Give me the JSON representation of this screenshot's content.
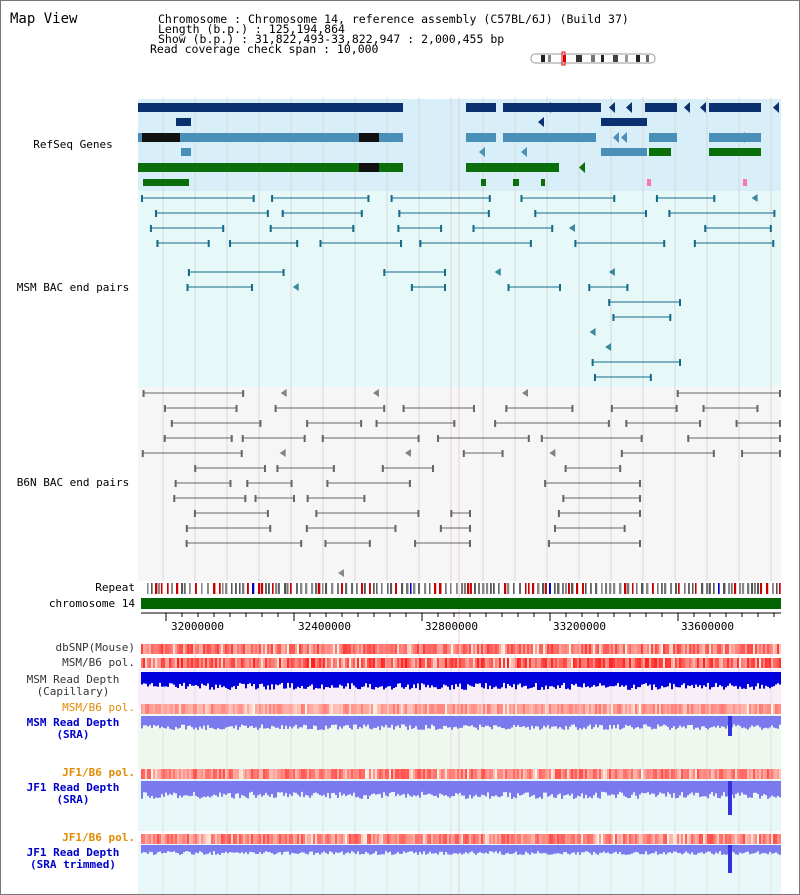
{
  "title": "Map View",
  "header": {
    "lines": [
      "Chromosome     : Chromosome 14, reference assembly (C57BL/6J) (Build 37)",
      "Length (b.p.) : 125,194,864",
      "  Show (b.p.) : 31,822,493-33,822,947 : 2,000,455 bp",
      "Read coverage check span : 10,000"
    ]
  },
  "tracks": {
    "refseq": {
      "label": "RefSeq Genes",
      "color": "#0000cc"
    },
    "msm_bac": {
      "label": "MSM BAC end pairs",
      "color": "#006b8f"
    },
    "b6n_bac": {
      "label": "B6N BAC end pairs",
      "color": "#444444"
    },
    "repeat": {
      "label": "Repeat"
    },
    "chromosome": {
      "label": "chromosome 14"
    },
    "dbsnp": {
      "label": "dbSNP(Mouse)"
    },
    "msm_b6_pol": {
      "label": "MSM/B6 pol."
    },
    "msm_depth_cap": {
      "label1": "MSM Read Depth",
      "label2": "(Capillary)"
    },
    "msm_b6_pol_orange": {
      "label": "MSM/B6 pol.",
      "color": "#e08c00"
    },
    "msm_depth_sra": {
      "label1": "MSM Read Depth",
      "label2": "(SRA)",
      "color": "#0000cc"
    },
    "jf1_b6_pol": {
      "label": "JF1/B6 pol.",
      "color": "#e08c00"
    },
    "jf1_depth_sra": {
      "label1": "JF1 Read Depth",
      "label2": "(SRA)",
      "color": "#0000cc"
    },
    "jf1_b6_pol2": {
      "label": "JF1/B6 pol.",
      "color": "#e08c00"
    },
    "jf1_depth_trim": {
      "label1": "JF1 Read Depth",
      "label2": "(SRA trimmed)",
      "color": "#0000cc"
    }
  },
  "axis": {
    "ticks": [
      "32000000",
      "32400000",
      "32800000",
      "33200000",
      "33600000"
    ]
  },
  "colors": {
    "gene_dark": "#0a3070",
    "gene_mid": "#4a8fb8",
    "gene_green": "#0a6e0a",
    "refseq_bg": "#d8eef8",
    "msm_bg": "#e6f8f8",
    "b6n_bg": "#f6f6f6",
    "chrom_green": "#006400",
    "depth_dark": "#0000dd",
    "depth_light": "#7a7aee"
  }
}
